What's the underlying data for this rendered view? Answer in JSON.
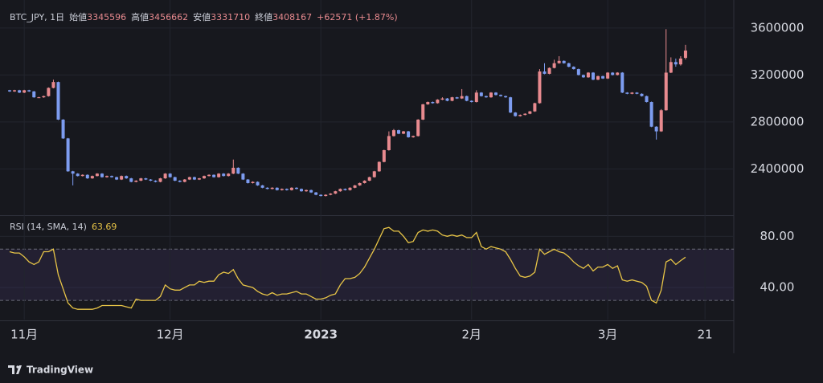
{
  "header": {
    "symbol": "BTC_JPY, 1日",
    "open_label": "始値",
    "high_label": "高値",
    "low_label": "安値",
    "close_label": "終値",
    "change": "+62571 (+1.87%)",
    "rsi_label": "RSI (14, SMA, 14)",
    "brand": "TradingView"
  },
  "chart_data": {
    "type": "candlestick",
    "up_color": "#e88a8f",
    "down_color": "#7d9cf0",
    "rsi_color": "#e8c547",
    "ylim": [
      2020000,
      3770000
    ],
    "yticks": [
      2400000,
      2800000,
      3200000,
      3600000
    ],
    "rsi_ylim": [
      15,
      94
    ],
    "rsi_yticks": [
      {
        "value": 40,
        "label": "40.00"
      },
      {
        "value": 80,
        "label": "80.00"
      }
    ],
    "rsi_bands": [
      30,
      70
    ],
    "grid": true,
    "categories": [
      null,
      null,
      null,
      "11月",
      null,
      null,
      null,
      null,
      null,
      null,
      null,
      null,
      null,
      null,
      null,
      null,
      null,
      null,
      null,
      null,
      null,
      null,
      null,
      null,
      null,
      null,
      null,
      null,
      null,
      null,
      null,
      null,
      null,
      "12月",
      null,
      null,
      null,
      null,
      null,
      null,
      null,
      null,
      null,
      null,
      null,
      null,
      null,
      null,
      null,
      null,
      null,
      null,
      null,
      null,
      null,
      null,
      null,
      null,
      null,
      null,
      null,
      null,
      null,
      null,
      "2023",
      null,
      null,
      null,
      null,
      null,
      null,
      null,
      null,
      null,
      null,
      null,
      null,
      null,
      null,
      null,
      null,
      null,
      null,
      null,
      null,
      null,
      null,
      null,
      null,
      null,
      null,
      null,
      null,
      null,
      null,
      "2月",
      null,
      null,
      null,
      null,
      null,
      null,
      null,
      null,
      null,
      null,
      null,
      null,
      null,
      null,
      null,
      null,
      null,
      null,
      null,
      null,
      null,
      null,
      null,
      null,
      null,
      null,
      null,
      "3月",
      null,
      null,
      null,
      null,
      null,
      null,
      null,
      null,
      null,
      null,
      null,
      null,
      null,
      null,
      null,
      null,
      null,
      null,
      null,
      "21"
    ],
    "open": [
      3070000,
      3060000,
      3070000,
      3050000,
      3070000,
      3060000,
      3010000,
      3010000,
      3020000,
      3090000,
      3140000,
      2820000,
      2660000,
      2380000,
      2360000,
      2340000,
      2350000,
      2320000,
      2340000,
      2360000,
      2330000,
      2340000,
      2330000,
      2310000,
      2340000,
      2320000,
      2290000,
      2300000,
      2320000,
      2310000,
      2300000,
      2290000,
      2320000,
      2360000,
      2330000,
      2300000,
      2290000,
      2310000,
      2330000,
      2310000,
      2320000,
      2340000,
      2350000,
      2330000,
      2360000,
      2340000,
      2360000,
      2410000,
      2360000,
      2310000,
      2280000,
      2290000,
      2260000,
      2240000,
      2230000,
      2240000,
      2220000,
      2230000,
      2220000,
      2240000,
      2230000,
      2210000,
      2220000,
      2200000,
      2180000,
      2170000,
      2180000,
      2190000,
      2210000,
      2230000,
      2220000,
      2240000,
      2260000,
      2280000,
      2300000,
      2330000,
      2380000,
      2460000,
      2560000,
      2680000,
      2730000,
      2700000,
      2720000,
      2670000,
      2680000,
      2820000,
      2950000,
      2970000,
      2960000,
      2990000,
      3000000,
      2980000,
      3010000,
      3000000,
      3020000,
      2980000,
      2970000,
      3050000,
      3020000,
      3010000,
      3050000,
      3030000,
      3020000,
      3010000,
      2880000,
      2850000,
      2860000,
      2870000,
      2890000,
      2960000,
      3230000,
      3210000,
      3260000,
      3300000,
      3320000,
      3300000,
      3270000,
      3250000,
      3200000,
      3180000,
      3220000,
      3160000,
      3190000,
      3170000,
      3220000,
      3200000,
      3220000,
      3050000,
      3040000,
      3050000,
      3040000,
      3020000,
      2970000,
      2760000,
      2720000,
      2900000,
      3220000,
      3310000,
      3290000,
      3345596,
      null,
      null,
      null,
      null
    ],
    "high": [
      3074000,
      3074000,
      3074000,
      3074000,
      3074000,
      3064000,
      3014000,
      3024000,
      3094000,
      3160000,
      3144000,
      2824000,
      2664000,
      2384000,
      2364000,
      2354000,
      2354000,
      2344000,
      2364000,
      2364000,
      2344000,
      2344000,
      2334000,
      2344000,
      2344000,
      2324000,
      2304000,
      2324000,
      2324000,
      2314000,
      2304000,
      2324000,
      2364000,
      2364000,
      2334000,
      2304000,
      2314000,
      2334000,
      2334000,
      2324000,
      2344000,
      2354000,
      2354000,
      2364000,
      2364000,
      2364000,
      2480000,
      2414000,
      2364000,
      2314000,
      2294000,
      2294000,
      2264000,
      2244000,
      2244000,
      2244000,
      2234000,
      2234000,
      2244000,
      2244000,
      2234000,
      2224000,
      2224000,
      2204000,
      2184000,
      2184000,
      2194000,
      2214000,
      2234000,
      2234000,
      2244000,
      2264000,
      2284000,
      2304000,
      2334000,
      2384000,
      2464000,
      2564000,
      2720000,
      2740000,
      2734000,
      2724000,
      2724000,
      2684000,
      2824000,
      2954000,
      2974000,
      2974000,
      2994000,
      3010000,
      3004000,
      3014000,
      3014000,
      3080000,
      3024000,
      2984000,
      3070000,
      3054000,
      3024000,
      3054000,
      3054000,
      3034000,
      3024000,
      3014000,
      2884000,
      2864000,
      2874000,
      2894000,
      2964000,
      3250000,
      3300000,
      3264000,
      3330000,
      3360000,
      3324000,
      3304000,
      3274000,
      3254000,
      3204000,
      3224000,
      3224000,
      3194000,
      3194000,
      3224000,
      3224000,
      3224000,
      3224000,
      3054000,
      3054000,
      3054000,
      3044000,
      3024000,
      2974000,
      2764000,
      2910000,
      3590000,
      3350000,
      3340000,
      3360000,
      3456662,
      null,
      null,
      null,
      null
    ],
    "low": [
      3056000,
      3056000,
      3046000,
      3046000,
      3056000,
      3006000,
      3006000,
      3006000,
      3016000,
      3086000,
      2816000,
      2656000,
      2376000,
      2260000,
      2336000,
      2336000,
      2316000,
      2316000,
      2336000,
      2326000,
      2326000,
      2326000,
      2306000,
      2306000,
      2316000,
      2286000,
      2286000,
      2296000,
      2306000,
      2296000,
      2286000,
      2286000,
      2316000,
      2326000,
      2296000,
      2286000,
      2286000,
      2306000,
      2306000,
      2306000,
      2316000,
      2336000,
      2326000,
      2326000,
      2336000,
      2336000,
      2356000,
      2356000,
      2306000,
      2276000,
      2276000,
      2256000,
      2236000,
      2226000,
      2226000,
      2216000,
      2216000,
      2216000,
      2216000,
      2226000,
      2206000,
      2206000,
      2196000,
      2176000,
      2166000,
      2166000,
      2176000,
      2186000,
      2206000,
      2216000,
      2216000,
      2236000,
      2256000,
      2276000,
      2296000,
      2326000,
      2376000,
      2456000,
      2556000,
      2676000,
      2696000,
      2696000,
      2666000,
      2666000,
      2676000,
      2816000,
      2946000,
      2956000,
      2956000,
      2986000,
      2976000,
      2976000,
      2996000,
      2996000,
      2976000,
      2966000,
      2966000,
      3016000,
      3006000,
      3006000,
      3026000,
      3016000,
      3006000,
      2876000,
      2846000,
      2846000,
      2856000,
      2866000,
      2886000,
      2956000,
      3206000,
      3206000,
      3256000,
      3296000,
      3296000,
      3266000,
      3246000,
      3196000,
      3176000,
      3176000,
      3156000,
      3156000,
      3166000,
      3166000,
      3196000,
      3196000,
      3046000,
      3036000,
      3036000,
      3036000,
      3016000,
      2966000,
      2756000,
      2650000,
      2716000,
      2896000,
      3216000,
      3270000,
      3280000,
      3331710,
      null,
      null,
      null,
      null
    ],
    "close": [
      3060000,
      3070000,
      3050000,
      3070000,
      3060000,
      3010000,
      3010000,
      3020000,
      3090000,
      3140000,
      2820000,
      2660000,
      2380000,
      2360000,
      2340000,
      2350000,
      2320000,
      2340000,
      2360000,
      2330000,
      2340000,
      2330000,
      2310000,
      2340000,
      2320000,
      2290000,
      2300000,
      2320000,
      2310000,
      2300000,
      2290000,
      2320000,
      2360000,
      2330000,
      2300000,
      2290000,
      2310000,
      2330000,
      2310000,
      2320000,
      2340000,
      2350000,
      2330000,
      2360000,
      2340000,
      2360000,
      2410000,
      2360000,
      2310000,
      2280000,
      2290000,
      2260000,
      2240000,
      2230000,
      2240000,
      2220000,
      2230000,
      2220000,
      2240000,
      2230000,
      2210000,
      2220000,
      2200000,
      2180000,
      2170000,
      2180000,
      2190000,
      2210000,
      2230000,
      2220000,
      2240000,
      2260000,
      2280000,
      2300000,
      2330000,
      2380000,
      2460000,
      2560000,
      2680000,
      2730000,
      2700000,
      2720000,
      2670000,
      2680000,
      2820000,
      2950000,
      2970000,
      2960000,
      2990000,
      3000000,
      2980000,
      3010000,
      3000000,
      3020000,
      2980000,
      2970000,
      3050000,
      3020000,
      3010000,
      3050000,
      3030000,
      3020000,
      3010000,
      2880000,
      2850000,
      2860000,
      2870000,
      2890000,
      2960000,
      3230000,
      3210000,
      3260000,
      3300000,
      3320000,
      3300000,
      3270000,
      3250000,
      3200000,
      3180000,
      3220000,
      3160000,
      3190000,
      3170000,
      3220000,
      3200000,
      3220000,
      3050000,
      3040000,
      3050000,
      3040000,
      3020000,
      2970000,
      2760000,
      2720000,
      2900000,
      3220000,
      3310000,
      3290000,
      3340000,
      3408167,
      null,
      null,
      null,
      null
    ],
    "rsi": [
      68,
      67,
      67,
      64,
      60,
      58,
      60,
      68,
      68,
      70,
      50,
      39,
      28,
      24,
      23,
      23,
      23,
      23,
      24,
      26,
      26,
      26,
      26,
      26,
      25,
      24,
      31,
      30,
      30,
      30,
      30,
      33,
      42,
      39,
      38,
      38,
      40,
      42,
      42,
      45,
      44,
      45,
      45,
      50,
      52,
      51,
      54,
      47,
      42,
      41,
      40,
      37,
      35,
      34,
      36,
      34,
      35,
      35,
      36,
      37,
      35,
      35,
      33,
      31,
      31,
      32,
      34,
      35,
      42,
      47,
      47,
      48,
      51,
      56,
      63,
      70,
      78,
      86,
      87,
      84,
      84,
      80,
      75,
      76,
      83,
      85,
      84,
      85,
      84,
      81,
      80,
      81,
      80,
      81,
      79,
      79,
      83,
      72,
      70,
      72,
      71,
      70,
      68,
      62,
      55,
      49,
      48,
      49,
      52,
      70,
      66,
      68,
      70,
      68,
      67,
      64,
      60,
      57,
      55,
      58,
      53,
      56,
      56,
      58,
      55,
      57,
      46,
      45,
      46,
      45,
      44,
      41,
      30,
      28,
      38,
      60,
      62,
      58,
      61,
      63.69,
      null,
      null,
      null,
      null
    ]
  }
}
